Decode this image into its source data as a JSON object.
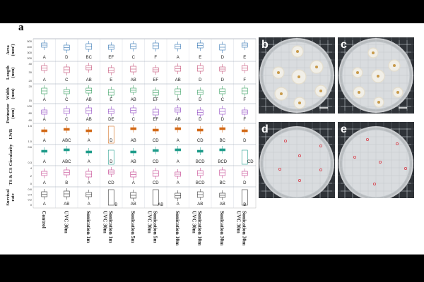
{
  "panel_a_label": "a",
  "panels": [
    {
      "label": "b"
    },
    {
      "label": "c"
    },
    {
      "label": "d"
    },
    {
      "label": "e"
    }
  ],
  "row_labels": [
    [
      "Area",
      "(mm²)"
    ],
    [
      "Length",
      "(mm)"
    ],
    [
      "Width",
      "(mm)"
    ],
    [
      "Perimeter",
      "(mm)"
    ],
    [
      "LWR"
    ],
    [
      "Circularity"
    ],
    [
      "TS & CS"
    ],
    [
      "Survival",
      "rate"
    ]
  ],
  "treatments": [
    "Control",
    "UVC 30m",
    "Sonication 1m",
    "Sonication 1m UVC 30m",
    "Sonication 5m",
    "Sonication 5m UVC 30m",
    "Sonication 10m",
    "Sonication 10m UVC 30m",
    "Sonication 30m",
    "Sonication 30m UVC 30m"
  ],
  "significance_letters": [
    [
      "A",
      "D",
      "BC",
      "EF",
      "C",
      "F",
      "A",
      "E",
      "D",
      "E"
    ],
    [
      "A",
      "C",
      "AB",
      "E",
      "AB",
      "EF",
      "AB",
      "D",
      "D",
      "F"
    ],
    [
      "A",
      "C",
      "AB",
      "E",
      "AB",
      "EF",
      "A",
      "D",
      "C",
      "F"
    ],
    [
      "A",
      "C",
      "AB",
      "DE",
      "C",
      "EF",
      "AB",
      "D",
      "D",
      "F"
    ],
    [
      "A",
      "ABC",
      "A",
      "D",
      "AB",
      "CD",
      "A",
      "CD",
      "BC",
      "D"
    ],
    [
      "A",
      "ABC",
      "A",
      "D",
      "AB",
      "CD",
      "A",
      "BCD",
      "BCD",
      "CD"
    ],
    [
      "A",
      "B",
      "A",
      "CD",
      "A",
      "CD",
      "A",
      "BCD",
      "BC",
      "D"
    ],
    [
      "A",
      "AB",
      "A",
      "B",
      "AB",
      "AB",
      "A",
      "AB",
      "AB",
      "B"
    ]
  ],
  "tick_labels": {
    "area": [
      "500",
      "400",
      "300",
      "200"
    ],
    "length": [
      "40",
      "30",
      "20"
    ],
    "width": [
      "20",
      "15"
    ],
    "perimeter": [
      "100",
      "80",
      "60"
    ],
    "lwr": [
      "1.5",
      "1.0"
    ],
    "circularity": [
      "0.6",
      "0.3"
    ],
    "ts_cs": [
      "4",
      "2",
      "0"
    ],
    "survival": [
      "0.6",
      "0.4",
      "0.2",
      "0"
    ]
  },
  "colors": {
    "area": "#2b6fb0",
    "length": "#c2466f",
    "width": "#2f9a59",
    "perimeter": "#8a3fbf",
    "lwr": "#d26a18",
    "circularity": "#1f9c8a",
    "ts_cs": "#c23b8a",
    "survival": "#333333"
  }
}
